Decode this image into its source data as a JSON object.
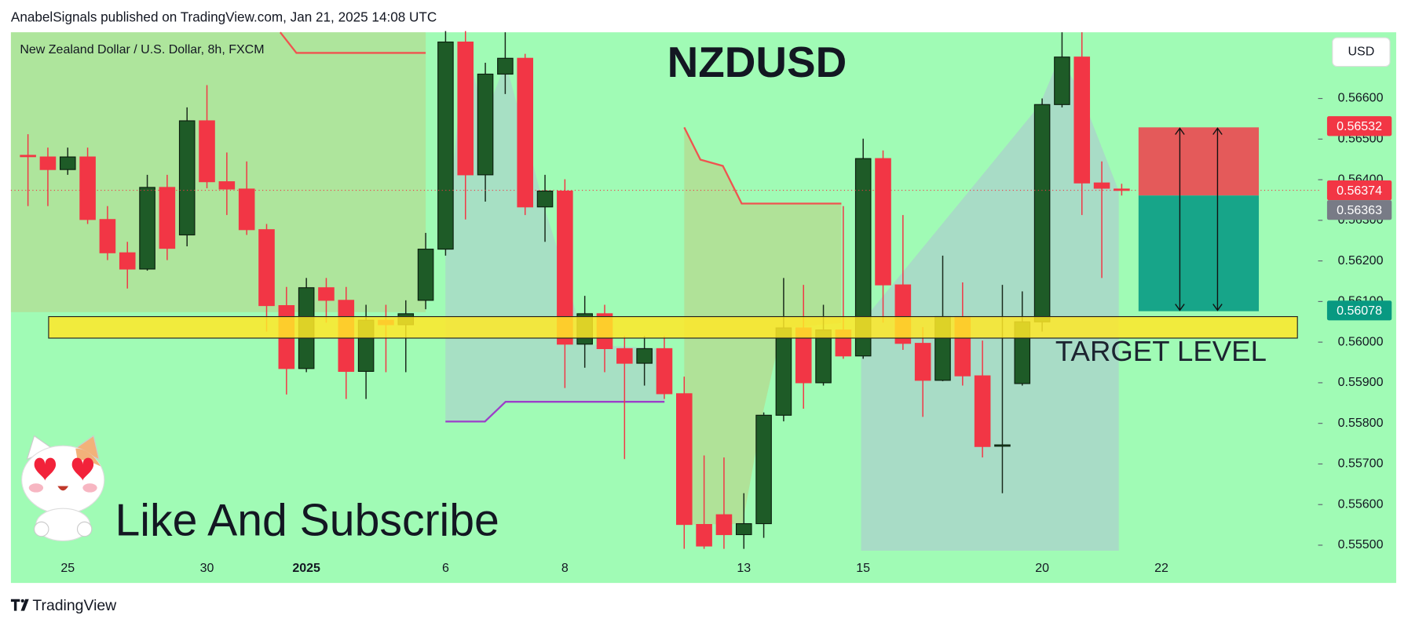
{
  "header": "AnabelSignals published on TradingView.com, Jan 21, 2025 14:08 UTC",
  "footer": "TradingView",
  "chart_data": {
    "type": "candlestick",
    "title": "NZDUSD",
    "symbol": "New Zealand Dollar / U.S. Dollar, 8h, FXCM",
    "currency": "USD",
    "annotations": [
      "TARGET LEVEL",
      "Like And Subscribe"
    ],
    "categories": [
      null,
      null,
      "25",
      null,
      null,
      null,
      null,
      null,
      null,
      "30",
      null,
      null,
      null,
      null,
      "2025",
      null,
      null,
      null,
      null,
      null,
      null,
      "6",
      null,
      null,
      null,
      null,
      null,
      "8",
      null,
      null,
      null,
      null,
      null,
      null,
      null,
      null,
      "13",
      null,
      null,
      null,
      null,
      null,
      "15",
      null,
      null,
      null,
      null,
      null,
      null,
      null,
      null,
      "20",
      null,
      null,
      null,
      null,
      null,
      "22"
    ],
    "open": [
      0.5646,
      0.56456,
      0.56425,
      0.56456,
      0.56302,
      0.5622,
      0.5618,
      0.56381,
      0.56264,
      0.56545,
      0.56395,
      0.56377,
      0.56277,
      0.5609,
      0.55935,
      0.56134,
      0.56103,
      0.55928,
      0.56054,
      0.56043,
      0.56103,
      0.56229,
      0.56739,
      0.56412,
      0.5666,
      0.56699,
      0.56333,
      0.56372,
      0.55995,
      0.5607,
      0.55984,
      0.55948,
      0.55984,
      0.55873,
      0.55551,
      0.55575,
      0.55526,
      0.55553,
      0.5582,
      0.56035,
      0.559,
      0.5603,
      0.55966,
      0.56452,
      0.56141,
      0.55997,
      0.55906,
      0.56063,
      0.55917,
      0.55745,
      0.55898,
      0.5605,
      0.56585,
      0.56702,
      0.56392,
      0.56377,
      null,
      null
    ],
    "high": [
      0.56512,
      0.56479,
      0.56479,
      0.56479,
      0.56335,
      0.56247,
      0.56412,
      0.56412,
      0.56578,
      0.56633,
      0.56467,
      0.56445,
      0.56291,
      0.56136,
      0.56158,
      0.56158,
      0.56136,
      0.56092,
      0.56092,
      0.56103,
      0.56269,
      0.56766,
      0.56766,
      0.56688,
      0.56763,
      0.5671,
      0.56412,
      0.56401,
      0.56114,
      0.56092,
      0.56015,
      0.56015,
      0.56015,
      0.55915,
      0.55721,
      0.55716,
      0.55628,
      0.55827,
      0.56158,
      0.56141,
      0.56092,
      0.56335,
      0.56501,
      0.56472,
      0.56313,
      0.56037,
      0.56213,
      0.56147,
      0.56004,
      0.56141,
      0.56125,
      0.566,
      0.56763,
      0.56763,
      0.56445,
      0.5639,
      null,
      null
    ],
    "low": [
      0.56335,
      0.56335,
      0.56412,
      0.56291,
      0.56202,
      0.56132,
      0.56176,
      0.56202,
      0.56236,
      0.56379,
      0.56313,
      0.56264,
      0.56026,
      0.55871,
      0.55926,
      0.56048,
      0.5586,
      0.5586,
      0.55926,
      0.55926,
      0.56081,
      0.56213,
      0.56302,
      0.56346,
      0.56611,
      0.56313,
      0.56247,
      0.55887,
      0.55937,
      0.55926,
      0.55712,
      0.55893,
      0.5586,
      0.55491,
      0.55491,
      0.55491,
      0.55491,
      0.55518,
      0.55805,
      0.55836,
      0.55893,
      0.55959,
      0.55959,
      0.56048,
      0.55981,
      0.55816,
      0.55904,
      0.55893,
      0.55716,
      0.55628,
      0.55893,
      0.56026,
      0.56578,
      0.56313,
      0.56158,
      0.56361,
      null,
      null
    ],
    "close": [
      0.56458,
      0.56425,
      0.56456,
      0.56302,
      0.5622,
      0.5618,
      0.56381,
      0.56231,
      0.56545,
      0.56395,
      0.56377,
      0.56277,
      0.5609,
      0.55935,
      0.56134,
      0.56103,
      0.55928,
      0.56054,
      0.56043,
      0.5607,
      0.56229,
      0.56739,
      0.56412,
      0.5666,
      0.56699,
      0.56333,
      0.56372,
      0.55995,
      0.5607,
      0.55984,
      0.55948,
      0.55984,
      0.55873,
      0.55551,
      0.55498,
      0.55526,
      0.55553,
      0.5582,
      0.56035,
      0.559,
      0.5603,
      0.55966,
      0.56452,
      0.56141,
      0.55997,
      0.55906,
      0.56063,
      0.55917,
      0.55743,
      0.55747,
      0.5605,
      0.56585,
      0.56702,
      0.56392,
      0.56379,
      0.56374,
      null,
      null
    ],
    "up_color": "#1e5b27",
    "down_color": "#f23645",
    "ylim": [
      0.55407,
      0.56763
    ],
    "yticks": [
      {
        "value": 0.566,
        "label": "0.56600"
      },
      {
        "value": 0.565,
        "label": "0.56500"
      },
      {
        "value": 0.564,
        "label": "0.56400"
      },
      {
        "value": 0.563,
        "label": "0.56300"
      },
      {
        "value": 0.562,
        "label": "0.56200"
      },
      {
        "value": 0.561,
        "label": "0.56100"
      },
      {
        "value": 0.56,
        "label": "0.56000"
      },
      {
        "value": 0.559,
        "label": "0.55900"
      },
      {
        "value": 0.558,
        "label": "0.55800"
      },
      {
        "value": 0.557,
        "label": "0.55700"
      },
      {
        "value": 0.556,
        "label": "0.55600"
      },
      {
        "value": 0.555,
        "label": "0.55500"
      }
    ],
    "price_badges": [
      {
        "value": 0.56532,
        "color": "#f23645"
      },
      {
        "value": 0.56374,
        "color": "#f23645"
      },
      {
        "value": 0.56363,
        "color": "#787b86"
      },
      {
        "value": 0.56078,
        "color": "#089981"
      }
    ]
  }
}
